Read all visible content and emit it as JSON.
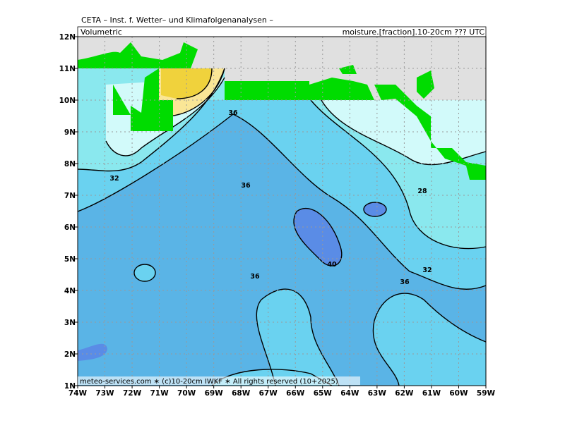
{
  "header": {
    "title": "CETA – Inst. f. Wetter– und Klimafolgenanalysen –",
    "left": "Volumetric",
    "right": "moisture.[fraction].10-20cm ??? UTC"
  },
  "footer": "meteo-services.com ∗ (c)10-20cm IWKF ∗ All rights reserved (10+2025)",
  "axes": {
    "lon_labels": [
      "74W",
      "73W",
      "72W",
      "71W",
      "70W",
      "69W",
      "68W",
      "67W",
      "66W",
      "65W",
      "64W",
      "63W",
      "62W",
      "61W",
      "60W",
      "59W"
    ],
    "lat_labels": [
      "12N",
      "11N",
      "10N",
      "9N",
      "8N",
      "7N",
      "6N",
      "5N",
      "4N",
      "3N",
      "2N",
      "1N"
    ]
  },
  "contour_labels": [
    "36",
    "32",
    "36",
    "28",
    "40",
    "32",
    "36",
    "36"
  ]
}
